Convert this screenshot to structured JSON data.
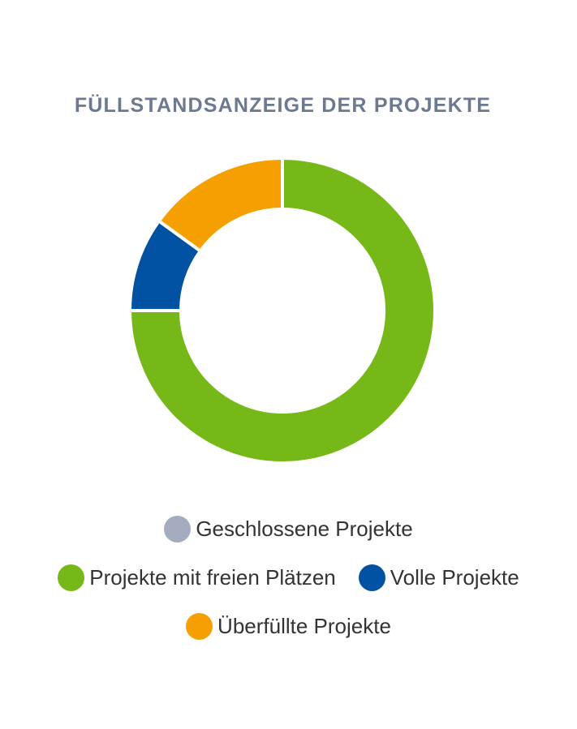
{
  "chart_data": {
    "type": "pie",
    "variant": "donut",
    "title": "FÜLLSTANDSANZEIGE DER PROJEKTE",
    "series": [
      {
        "name": "Geschlossene Projekte",
        "value": 0,
        "color": "#a3adbf"
      },
      {
        "name": "Projekte mit freien Plätzen",
        "value": 75,
        "color": "#76b817"
      },
      {
        "name": "Volle Projekte",
        "value": 10,
        "color": "#0152a3"
      },
      {
        "name": "Überfüllte Projekte",
        "value": 15,
        "color": "#f5a000"
      }
    ],
    "legend_placement": "bottom"
  }
}
